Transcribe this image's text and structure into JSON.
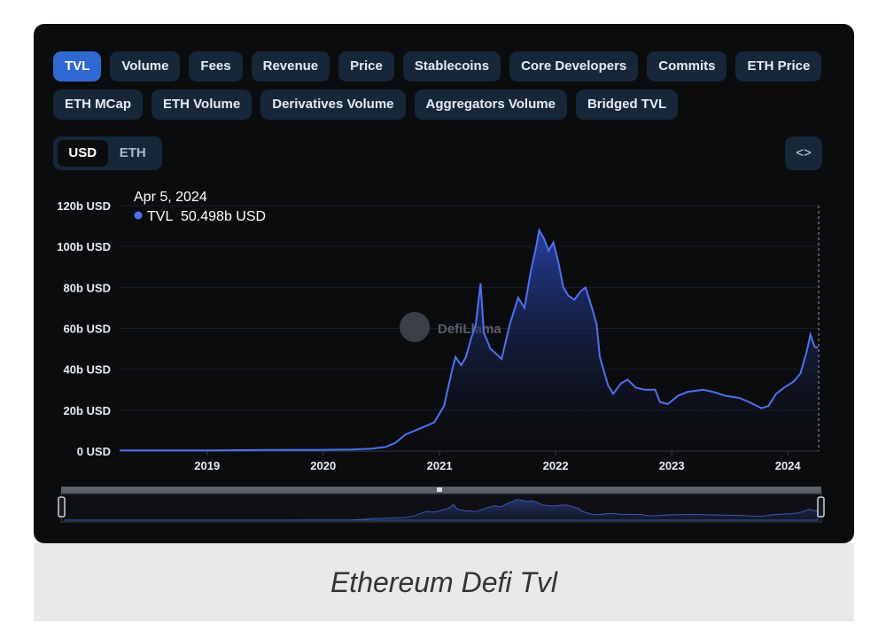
{
  "tabs": [
    "TVL",
    "Volume",
    "Fees",
    "Revenue",
    "Price",
    "Stablecoins",
    "Core Developers",
    "Commits",
    "ETH Price",
    "ETH MCap",
    "ETH Volume",
    "Derivatives Volume",
    "Aggregators Volume",
    "Bridged TVL"
  ],
  "active_tab": "TVL",
  "currency": {
    "options": [
      "USD",
      "ETH"
    ],
    "selected": "USD"
  },
  "embed_label": "<>",
  "watermark": "DefiLlama",
  "tooltip": {
    "date": "Apr 5, 2024",
    "series": "TVL",
    "value": "50.498b USD"
  },
  "caption": "Ethereum  Defi  Tvl",
  "colors": {
    "line": "#4e72f0",
    "accent": "#2f69d2",
    "background": "#0b0c0e"
  },
  "chart_data": {
    "type": "area",
    "series": [
      {
        "name": "TVL",
        "points": [
          [
            "2018-04-01",
            0.3
          ],
          [
            "2019-01-01",
            0.3
          ],
          [
            "2019-07-01",
            0.5
          ],
          [
            "2020-01-01",
            0.6
          ],
          [
            "2020-04-01",
            0.8
          ],
          [
            "2020-06-01",
            1.2
          ],
          [
            "2020-07-15",
            2
          ],
          [
            "2020-08-15",
            4
          ],
          [
            "2020-09-15",
            8
          ],
          [
            "2020-10-15",
            10
          ],
          [
            "2020-11-15",
            12
          ],
          [
            "2020-12-15",
            14
          ],
          [
            "2021-01-15",
            22
          ],
          [
            "2021-02-10",
            40
          ],
          [
            "2021-02-20",
            46
          ],
          [
            "2021-03-10",
            42
          ],
          [
            "2021-03-25",
            46
          ],
          [
            "2021-04-10",
            55
          ],
          [
            "2021-04-25",
            62
          ],
          [
            "2021-05-10",
            82
          ],
          [
            "2021-05-20",
            58
          ],
          [
            "2021-06-10",
            50
          ],
          [
            "2021-06-25",
            48
          ],
          [
            "2021-07-15",
            45
          ],
          [
            "2021-08-10",
            62
          ],
          [
            "2021-09-05",
            75
          ],
          [
            "2021-09-25",
            70
          ],
          [
            "2021-10-15",
            88
          ],
          [
            "2021-11-01",
            100
          ],
          [
            "2021-11-10",
            108
          ],
          [
            "2021-11-25",
            104
          ],
          [
            "2021-12-10",
            98
          ],
          [
            "2021-12-25",
            102
          ],
          [
            "2022-01-10",
            92
          ],
          [
            "2022-01-25",
            80
          ],
          [
            "2022-02-10",
            76
          ],
          [
            "2022-03-01",
            74
          ],
          [
            "2022-03-20",
            78
          ],
          [
            "2022-04-05",
            80
          ],
          [
            "2022-04-25",
            70
          ],
          [
            "2022-05-10",
            62
          ],
          [
            "2022-05-20",
            46
          ],
          [
            "2022-06-15",
            32
          ],
          [
            "2022-07-01",
            28
          ],
          [
            "2022-07-25",
            33
          ],
          [
            "2022-08-15",
            35
          ],
          [
            "2022-09-10",
            31
          ],
          [
            "2022-10-10",
            30
          ],
          [
            "2022-11-10",
            30
          ],
          [
            "2022-11-25",
            24
          ],
          [
            "2022-12-20",
            23
          ],
          [
            "2023-01-20",
            27
          ],
          [
            "2023-02-20",
            29
          ],
          [
            "2023-04-10",
            30
          ],
          [
            "2023-05-10",
            29
          ],
          [
            "2023-06-20",
            27
          ],
          [
            "2023-08-01",
            26
          ],
          [
            "2023-09-01",
            24
          ],
          [
            "2023-10-10",
            21
          ],
          [
            "2023-11-01",
            22
          ],
          [
            "2023-11-25",
            28
          ],
          [
            "2023-12-20",
            31
          ],
          [
            "2024-01-20",
            34
          ],
          [
            "2024-02-10",
            38
          ],
          [
            "2024-03-01",
            49
          ],
          [
            "2024-03-12",
            57
          ],
          [
            "2024-03-25",
            51
          ],
          [
            "2024-04-05",
            50.498
          ]
        ]
      }
    ],
    "xlabel": "",
    "ylabel": "",
    "x_ticks": [
      "2019",
      "2020",
      "2021",
      "2022",
      "2023",
      "2024"
    ],
    "y_ticks": [
      "0 USD",
      "20b USD",
      "40b USD",
      "60b USD",
      "80b USD",
      "100b USD",
      "120b USD"
    ],
    "ylim": [
      0,
      120
    ],
    "xlim": [
      "2018-04-01",
      "2024-04-07"
    ],
    "grid": true
  }
}
